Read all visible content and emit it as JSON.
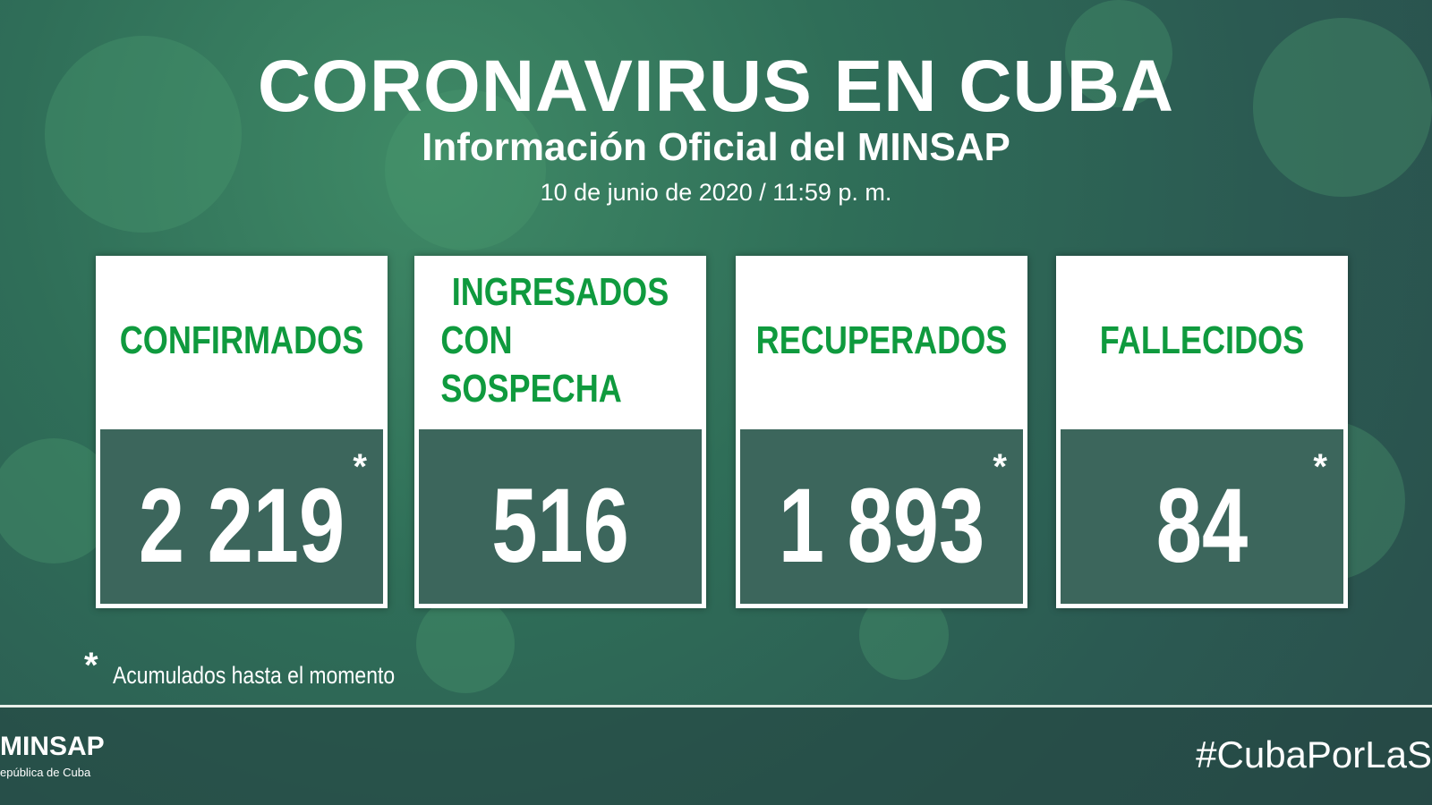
{
  "header": {
    "title": "CORONAVIRUS EN CUBA",
    "subtitle": "Información Oficial del MINSAP",
    "date": "10 de junio de 2020 / 11:59 p. m."
  },
  "cards": [
    {
      "label": [
        "CONFIRMADOS"
      ],
      "value": "2 219",
      "note": "*"
    },
    {
      "label": [
        "INGRESADOS",
        "CON SOSPECHA"
      ],
      "value": "516"
    },
    {
      "label": [
        "RECUPERADOS"
      ],
      "value": "1 893",
      "note": "*"
    },
    {
      "label": [
        "FALLECIDOS"
      ],
      "value": "84",
      "note": "*"
    }
  ],
  "footnote": {
    "mark": "*",
    "text": "Acumulados hasta el momento"
  },
  "footer": {
    "brand": "MINSAP",
    "brand_sub": "epública de Cuba",
    "hashtag": "#CubaPorLaS"
  }
}
